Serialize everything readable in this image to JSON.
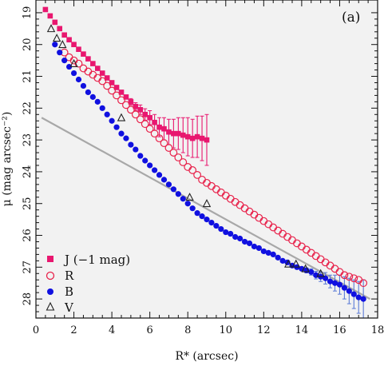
{
  "chart_data": {
    "type": "scatter",
    "panel_label": "(a)",
    "xlabel": "R* (arcsec)",
    "ylabel": "μ (mag arcsec⁻²)",
    "xlim": [
      0,
      18
    ],
    "ylim": [
      28.6,
      18.6
    ],
    "y_inverted": true,
    "x_ticks": [
      0,
      2,
      4,
      6,
      8,
      10,
      12,
      14,
      16,
      18
    ],
    "y_ticks": [
      19,
      20,
      21,
      22,
      23,
      24,
      25,
      26,
      27,
      28
    ],
    "grid": false,
    "background": "#f2f2f2",
    "legend_position": "bottom-left",
    "legend": [
      "J (−1 mag)",
      "R",
      "B",
      "V"
    ],
    "colors": {
      "J": "#e8176f",
      "R": "#e8214a",
      "B": "#1010e0",
      "V": "#222222",
      "fit": "#a8a8a8",
      "errorbar_B": "#5a7ad6"
    },
    "fit_line": {
      "x": [
        0.3,
        17.6
      ],
      "y": [
        22.3,
        28.0
      ]
    },
    "series": [
      {
        "name": "J (−1 mag)",
        "marker": "filled-square",
        "x": [
          0.5,
          0.75,
          1.0,
          1.25,
          1.5,
          1.75,
          2.0,
          2.25,
          2.5,
          2.75,
          3.0,
          3.25,
          3.5,
          3.75,
          4.0,
          4.25,
          4.5,
          4.75,
          5.0,
          5.25,
          5.5,
          5.75,
          6.0,
          6.25,
          6.5,
          6.75,
          7.0,
          7.25,
          7.5,
          7.75,
          8.0,
          8.25,
          8.5,
          8.75,
          9.0
        ],
        "y": [
          18.9,
          19.1,
          19.3,
          19.5,
          19.7,
          19.85,
          20.0,
          20.15,
          20.3,
          20.45,
          20.6,
          20.75,
          20.9,
          21.05,
          21.2,
          21.35,
          21.5,
          21.65,
          21.8,
          21.95,
          22.05,
          22.2,
          22.3,
          22.45,
          22.6,
          22.65,
          22.75,
          22.8,
          22.8,
          22.85,
          22.9,
          22.95,
          22.9,
          22.95,
          23.0
        ],
        "err": [
          0,
          0,
          0,
          0,
          0,
          0,
          0,
          0,
          0,
          0,
          0,
          0,
          0,
          0,
          0,
          0,
          0,
          0,
          0.1,
          0.12,
          0.15,
          0.18,
          0.22,
          0.25,
          0.3,
          0.35,
          0.4,
          0.45,
          0.5,
          0.55,
          0.6,
          0.6,
          0.65,
          0.7,
          0.8
        ]
      },
      {
        "name": "R",
        "marker": "open-circle",
        "x": [
          1.5,
          1.75,
          2.0,
          2.25,
          2.5,
          2.75,
          3.0,
          3.25,
          3.5,
          3.75,
          4.0,
          4.25,
          4.5,
          4.75,
          5.0,
          5.25,
          5.5,
          5.75,
          6.0,
          6.25,
          6.5,
          6.75,
          7.0,
          7.25,
          7.5,
          7.75,
          8.0,
          8.25,
          8.5,
          8.75,
          9.0,
          9.25,
          9.5,
          9.75,
          10.0,
          10.25,
          10.5,
          10.75,
          11.0,
          11.25,
          11.5,
          11.75,
          12.0,
          12.25,
          12.5,
          12.75,
          13.0,
          13.25,
          13.5,
          13.75,
          14.0,
          14.25,
          14.5,
          14.75,
          15.0,
          15.25,
          15.5,
          15.75,
          16.0,
          16.25,
          16.5,
          16.75,
          17.0,
          17.25
        ],
        "y": [
          20.25,
          20.4,
          20.5,
          20.6,
          20.75,
          20.85,
          20.95,
          21.05,
          21.15,
          21.3,
          21.45,
          21.6,
          21.75,
          21.9,
          22.05,
          22.2,
          22.35,
          22.5,
          22.65,
          22.8,
          22.95,
          23.1,
          23.25,
          23.4,
          23.55,
          23.7,
          23.85,
          23.95,
          24.1,
          24.25,
          24.35,
          24.45,
          24.55,
          24.65,
          24.75,
          24.85,
          24.95,
          25.05,
          25.15,
          25.25,
          25.35,
          25.45,
          25.55,
          25.65,
          25.75,
          25.85,
          25.95,
          26.05,
          26.15,
          26.25,
          26.35,
          26.45,
          26.55,
          26.65,
          26.75,
          26.85,
          26.95,
          27.05,
          27.15,
          27.25,
          27.3,
          27.35,
          27.4,
          27.5
        ]
      },
      {
        "name": "B",
        "marker": "filled-circle",
        "x": [
          1.0,
          1.25,
          1.5,
          1.75,
          2.0,
          2.25,
          2.5,
          2.75,
          3.0,
          3.25,
          3.5,
          3.75,
          4.0,
          4.25,
          4.5,
          4.75,
          5.0,
          5.25,
          5.5,
          5.75,
          6.0,
          6.25,
          6.5,
          6.75,
          7.0,
          7.25,
          7.5,
          7.75,
          8.0,
          8.25,
          8.5,
          8.75,
          9.0,
          9.25,
          9.5,
          9.75,
          10.0,
          10.25,
          10.5,
          10.75,
          11.0,
          11.25,
          11.5,
          11.75,
          12.0,
          12.25,
          12.5,
          12.75,
          13.0,
          13.25,
          13.5,
          13.75,
          14.0,
          14.25,
          14.5,
          14.75,
          15.0,
          15.25,
          15.5,
          15.75,
          16.0,
          16.25,
          16.5,
          16.75,
          17.0,
          17.25
        ],
        "y": [
          20.0,
          20.25,
          20.5,
          20.7,
          20.9,
          21.1,
          21.3,
          21.5,
          21.65,
          21.8,
          22.0,
          22.2,
          22.4,
          22.6,
          22.8,
          22.95,
          23.15,
          23.3,
          23.5,
          23.65,
          23.8,
          23.95,
          24.1,
          24.25,
          24.4,
          24.55,
          24.7,
          24.85,
          25.0,
          25.15,
          25.3,
          25.4,
          25.5,
          25.6,
          25.7,
          25.8,
          25.9,
          25.95,
          26.05,
          26.1,
          26.2,
          26.25,
          26.35,
          26.4,
          26.5,
          26.55,
          26.6,
          26.7,
          26.8,
          26.85,
          26.95,
          27.0,
          27.05,
          27.1,
          27.15,
          27.25,
          27.3,
          27.35,
          27.45,
          27.5,
          27.55,
          27.65,
          27.75,
          27.85,
          27.95,
          28.0
        ],
        "err": [
          0,
          0,
          0,
          0,
          0,
          0,
          0,
          0,
          0,
          0,
          0,
          0,
          0,
          0,
          0,
          0,
          0,
          0,
          0,
          0,
          0,
          0,
          0,
          0,
          0,
          0,
          0,
          0,
          0,
          0,
          0,
          0,
          0,
          0,
          0,
          0,
          0,
          0,
          0,
          0,
          0,
          0,
          0,
          0,
          0,
          0,
          0,
          0,
          0,
          0,
          0,
          0,
          0.05,
          0.08,
          0.1,
          0.12,
          0.15,
          0.18,
          0.2,
          0.25,
          0.3,
          0.35,
          0.4,
          0.45,
          0.5,
          0.6
        ]
      },
      {
        "name": "V",
        "marker": "open-triangle",
        "x": [
          0.8,
          1.1,
          1.4,
          2.0,
          4.5,
          8.1,
          9.0,
          13.3,
          13.7,
          14.2,
          15.0
        ],
        "y": [
          19.5,
          19.8,
          20.0,
          20.6,
          22.3,
          24.8,
          25.0,
          26.9,
          26.9,
          27.05,
          27.2
        ]
      }
    ]
  }
}
